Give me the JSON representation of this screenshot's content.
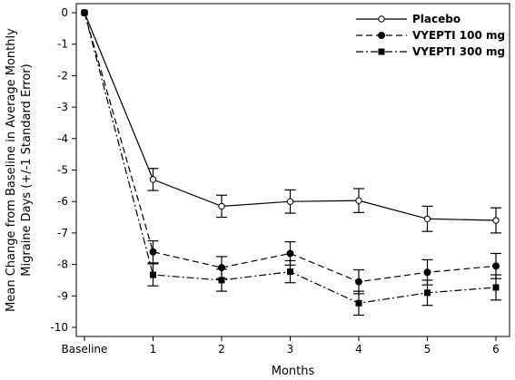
{
  "chart_data": {
    "type": "line",
    "title": "",
    "xlabel": "Months",
    "ylabel_lines": [
      "Mean Change from Baseline in Average Monthly",
      "Migraine Days (+/-1 Standard Error)"
    ],
    "categories": [
      "Baseline",
      "1",
      "2",
      "3",
      "4",
      "5",
      "6"
    ],
    "x": [
      0,
      1,
      2,
      3,
      4,
      5,
      6
    ],
    "yticks": [
      "0",
      "-1",
      "-2",
      "-3",
      "-4",
      "-5",
      "-6",
      "-7",
      "-8",
      "-9",
      "-10"
    ],
    "ylim": [
      -10.5,
      0.1
    ],
    "grid": false,
    "legend_position": "top-right",
    "series": [
      {
        "name": "Placebo",
        "marker": "open-circle",
        "line_style": "solid",
        "values": [
          0,
          -5.3,
          -6.15,
          -6.0,
          -5.97,
          -6.55,
          -6.6
        ],
        "errors": [
          0,
          0.35,
          0.35,
          0.37,
          0.38,
          0.4,
          0.4
        ]
      },
      {
        "name": "VYEPTI 100 mg",
        "marker": "filled-circle",
        "line_style": "dashed",
        "values": [
          0,
          -7.6,
          -8.1,
          -7.65,
          -8.55,
          -8.25,
          -8.05
        ],
        "errors": [
          0,
          0.35,
          0.35,
          0.37,
          0.38,
          0.4,
          0.4
        ]
      },
      {
        "name": "VYEPTI 300 mg",
        "marker": "filled-square",
        "line_style": "dash-dot",
        "values": [
          0,
          -8.33,
          -8.5,
          -8.23,
          -9.23,
          -8.9,
          -8.73
        ],
        "errors": [
          0,
          0.35,
          0.35,
          0.35,
          0.38,
          0.4,
          0.4
        ]
      }
    ],
    "colors": {
      "line": "#000000",
      "background": "#ffffff"
    }
  }
}
